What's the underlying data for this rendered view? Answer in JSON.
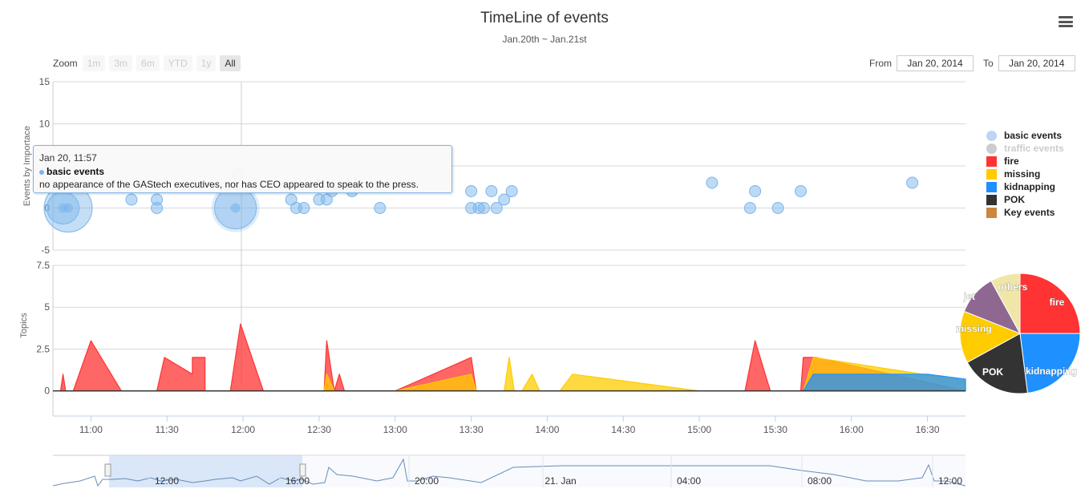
{
  "header": {
    "title": "TimeLine of events",
    "subtitle": "Jan.20th ~ Jan.21st"
  },
  "toolbar": {
    "zoom_label": "Zoom",
    "zoom_buttons": [
      "1m",
      "3m",
      "6m",
      "YTD",
      "1y",
      "All"
    ],
    "active_zoom": "All",
    "from_label": "From",
    "from_value": "Jan 20, 2014",
    "to_label": "To",
    "to_value": "Jan 20, 2014"
  },
  "tooltip": {
    "date": "Jan 20, 11:57",
    "series": "basic events",
    "text": "no appearance of the GAStech executives, nor has CEO appeared to speak to the press."
  },
  "colors": {
    "basic": "#7cb5ec",
    "fire": "#ff3333",
    "missing": "#ffcc00",
    "kidnapping": "#1e90ff",
    "pok": "#333333",
    "jet": "#8e6891",
    "others": "#efe6a8",
    "traffic": "#b9a4b9",
    "key": "#cd853f"
  },
  "legend": [
    {
      "label": "basic events",
      "symbol": "circle",
      "color": "#bcd6f3",
      "visible": true
    },
    {
      "label": "traffic events",
      "symbol": "circle",
      "color": "#b9a4b9",
      "visible": false
    },
    {
      "label": "fire",
      "symbol": "square",
      "color": "#ff3333",
      "visible": true
    },
    {
      "label": "missing",
      "symbol": "square",
      "color": "#ffcc00",
      "visible": true
    },
    {
      "label": "kidnapping",
      "symbol": "square",
      "color": "#1e90ff",
      "visible": true
    },
    {
      "label": "POK",
      "symbol": "square",
      "color": "#333333",
      "visible": true
    },
    {
      "label": "Key events",
      "symbol": "square",
      "color": "#cd853f",
      "visible": true
    }
  ],
  "chart_data": [
    {
      "type": "scatter",
      "subtype": "bubble",
      "title": "",
      "ylabel": "Events by Importace",
      "ylim": [
        -5,
        15
      ],
      "yticks": [
        15,
        10,
        5,
        0,
        -5
      ],
      "x_range": [
        "10:45",
        "16:45"
      ],
      "xticks": [
        "11:00",
        "11:30",
        "12:00",
        "12:30",
        "13:00",
        "13:30",
        "14:00",
        "14:30",
        "15:00",
        "15:30",
        "16:00",
        "16:30"
      ],
      "series": [
        {
          "name": "basic events",
          "points": [
            {
              "x": "10:49",
              "y": 0,
              "size": "large"
            },
            {
              "x": "10:51",
              "y": 0,
              "size": "large"
            },
            {
              "x": "11:16",
              "y": 1,
              "size": "small"
            },
            {
              "x": "11:26",
              "y": 1,
              "size": "small"
            },
            {
              "x": "11:26",
              "y": 0,
              "size": "small"
            },
            {
              "x": "11:57",
              "y": 0,
              "size": "large"
            },
            {
              "x": "11:58",
              "y": 4,
              "size": "small"
            },
            {
              "x": "12:19",
              "y": 1,
              "size": "small"
            },
            {
              "x": "12:21",
              "y": 0,
              "size": "small"
            },
            {
              "x": "12:24",
              "y": 0,
              "size": "small"
            },
            {
              "x": "12:30",
              "y": 1,
              "size": "small"
            },
            {
              "x": "12:33",
              "y": 1,
              "size": "small"
            },
            {
              "x": "12:35",
              "y": 2,
              "size": "small"
            },
            {
              "x": "12:43",
              "y": 2,
              "size": "small"
            },
            {
              "x": "12:54",
              "y": 0,
              "size": "small"
            },
            {
              "x": "13:30",
              "y": 2,
              "size": "small"
            },
            {
              "x": "13:30",
              "y": 0,
              "size": "small"
            },
            {
              "x": "13:33",
              "y": 0,
              "size": "small"
            },
            {
              "x": "13:35",
              "y": 0,
              "size": "small"
            },
            {
              "x": "13:38",
              "y": 2,
              "size": "small"
            },
            {
              "x": "13:40",
              "y": 0,
              "size": "small"
            },
            {
              "x": "13:43",
              "y": 1,
              "size": "small"
            },
            {
              "x": "13:46",
              "y": 2,
              "size": "small"
            },
            {
              "x": "15:05",
              "y": 3,
              "size": "small"
            },
            {
              "x": "15:20",
              "y": 0,
              "size": "small"
            },
            {
              "x": "15:22",
              "y": 2,
              "size": "small"
            },
            {
              "x": "15:31",
              "y": 0,
              "size": "small"
            },
            {
              "x": "15:40",
              "y": 2,
              "size": "small"
            },
            {
              "x": "16:24",
              "y": 3,
              "size": "small"
            }
          ]
        }
      ]
    },
    {
      "type": "area",
      "title": "",
      "ylabel": "Topics",
      "ylim": [
        -1.5,
        7.5
      ],
      "yticks": [
        7.5,
        5,
        2.5,
        0
      ],
      "x_range": [
        "10:45",
        "16:45"
      ],
      "series": [
        {
          "name": "fire",
          "color": "#ff3333",
          "points": [
            [
              "10:48",
              0
            ],
            [
              "10:49",
              1
            ],
            [
              "10:50",
              0
            ],
            [
              "10:53",
              0
            ],
            [
              "11:00",
              3
            ],
            [
              "11:12",
              0
            ],
            [
              "11:26",
              0
            ],
            [
              "11:29",
              2
            ],
            [
              "11:40",
              1
            ],
            [
              "11:40",
              2
            ],
            [
              "11:45",
              2
            ],
            [
              "11:45",
              0
            ],
            [
              "11:55",
              0
            ],
            [
              "11:59",
              4
            ],
            [
              "12:08",
              0
            ],
            [
              "12:32",
              0
            ],
            [
              "12:33",
              3
            ],
            [
              "12:36",
              0
            ],
            [
              "12:36",
              0
            ],
            [
              "12:38",
              1
            ],
            [
              "12:40",
              0
            ],
            [
              "13:00",
              0
            ],
            [
              "13:30",
              2
            ],
            [
              "13:32",
              0
            ],
            [
              "15:18",
              0
            ],
            [
              "15:22",
              3
            ],
            [
              "15:28",
              0
            ],
            [
              "15:40",
              0
            ],
            [
              "15:41",
              2
            ],
            [
              "15:46",
              2
            ],
            [
              "16:45",
              0
            ]
          ]
        },
        {
          "name": "missing",
          "color": "#ffcc00",
          "points": [
            [
              "12:32",
              0
            ],
            [
              "12:33",
              1
            ],
            [
              "12:36",
              0
            ],
            [
              "13:00",
              0
            ],
            [
              "13:30",
              1
            ],
            [
              "13:32",
              0
            ],
            [
              "13:43",
              0
            ],
            [
              "13:45",
              2
            ],
            [
              "13:47",
              0
            ],
            [
              "13:50",
              0
            ],
            [
              "13:54",
              1
            ],
            [
              "13:57",
              0
            ],
            [
              "14:05",
              0
            ],
            [
              "14:10",
              1
            ],
            [
              "15:00",
              0
            ],
            [
              "15:41",
              0
            ],
            [
              "15:45",
              2
            ],
            [
              "16:45",
              0.6
            ]
          ]
        },
        {
          "name": "kidnapping",
          "color": "#1e90ff",
          "points": [
            [
              "15:41",
              0
            ],
            [
              "15:45",
              1
            ],
            [
              "16:30",
              1
            ],
            [
              "16:45",
              0.7
            ]
          ]
        }
      ]
    },
    {
      "type": "line",
      "title": "",
      "role": "navigator",
      "xticks": [
        "12:00",
        "16:00",
        "20:00",
        "21. Jan",
        "04:00",
        "08:00",
        "12:00"
      ],
      "selection": [
        "10:45",
        "16:45"
      ]
    },
    {
      "type": "pie",
      "title": "",
      "slices": [
        {
          "label": "fire",
          "value": 25,
          "color": "#ff3333"
        },
        {
          "label": "kidnapping",
          "value": 23,
          "color": "#1e90ff"
        },
        {
          "label": "POK",
          "value": 19,
          "color": "#333333"
        },
        {
          "label": "missing",
          "value": 14,
          "color": "#ffcc00"
        },
        {
          "label": "jet",
          "value": 11,
          "color": "#8e6891"
        },
        {
          "label": "others",
          "value": 8,
          "color": "#efe6a8"
        }
      ]
    }
  ]
}
